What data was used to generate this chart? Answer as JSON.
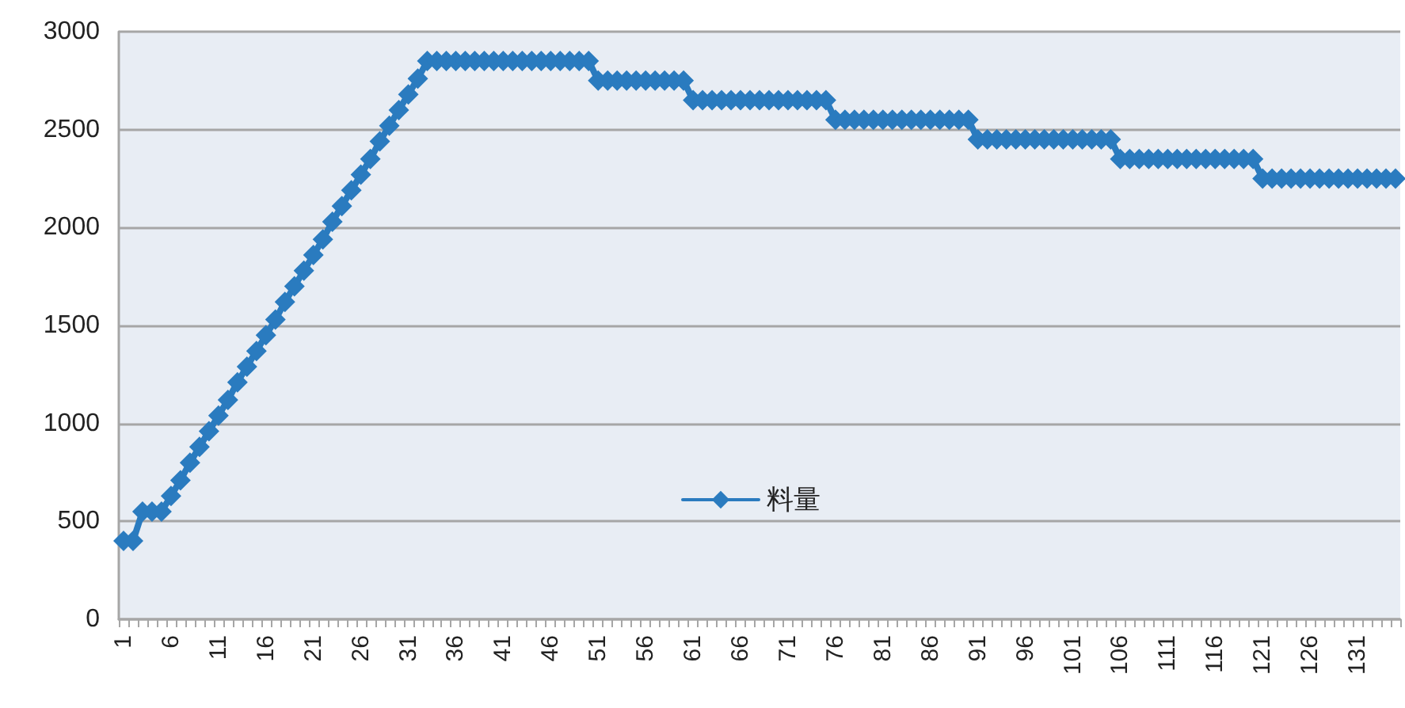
{
  "chart_data": {
    "type": "line",
    "categories": [
      "1",
      null,
      null,
      null,
      null,
      "6",
      null,
      null,
      null,
      null,
      "11",
      null,
      null,
      null,
      null,
      "16",
      null,
      null,
      null,
      null,
      "21",
      null,
      null,
      null,
      null,
      "26",
      null,
      null,
      null,
      null,
      "31",
      null,
      null,
      null,
      null,
      "36",
      null,
      null,
      null,
      null,
      "41",
      null,
      null,
      null,
      null,
      "46",
      null,
      null,
      null,
      null,
      "51",
      null,
      null,
      null,
      null,
      "56",
      null,
      null,
      null,
      null,
      "61",
      null,
      null,
      null,
      null,
      "66",
      null,
      null,
      null,
      null,
      "71",
      null,
      null,
      null,
      null,
      "76",
      null,
      null,
      null,
      null,
      "81",
      null,
      null,
      null,
      null,
      "86",
      null,
      null,
      null,
      null,
      "91",
      null,
      null,
      null,
      null,
      "96",
      null,
      null,
      null,
      null,
      "101",
      null,
      null,
      null,
      null,
      "106",
      null,
      null,
      null,
      null,
      "111",
      null,
      null,
      null,
      null,
      "116",
      null,
      null,
      null,
      null,
      "121",
      null,
      null,
      null,
      null,
      "126",
      null,
      null,
      null,
      null,
      "131",
      null,
      null,
      null,
      null
    ],
    "series": [
      {
        "name": "料量",
        "color": "#2a7bbf",
        "values": [
          400,
          400,
          550,
          550,
          550,
          630,
          710,
          800,
          880,
          960,
          1040,
          1120,
          1210,
          1290,
          1370,
          1450,
          1530,
          1620,
          1700,
          1780,
          1860,
          1940,
          2030,
          2110,
          2190,
          2270,
          2350,
          2440,
          2520,
          2600,
          2680,
          2760,
          2850,
          2850,
          2850,
          2850,
          2850,
          2850,
          2850,
          2850,
          2850,
          2850,
          2850,
          2850,
          2850,
          2850,
          2850,
          2850,
          2850,
          2850,
          2750,
          2750,
          2750,
          2750,
          2750,
          2750,
          2750,
          2750,
          2750,
          2750,
          2650,
          2650,
          2650,
          2650,
          2650,
          2650,
          2650,
          2650,
          2650,
          2650,
          2650,
          2650,
          2650,
          2650,
          2650,
          2550,
          2550,
          2550,
          2550,
          2550,
          2550,
          2550,
          2550,
          2550,
          2550,
          2550,
          2550,
          2550,
          2550,
          2550,
          2450,
          2450,
          2450,
          2450,
          2450,
          2450,
          2450,
          2450,
          2450,
          2450,
          2450,
          2450,
          2450,
          2450,
          2450,
          2350,
          2350,
          2350,
          2350,
          2350,
          2350,
          2350,
          2350,
          2350,
          2350,
          2350,
          2350,
          2350,
          2350,
          2350,
          2250,
          2250,
          2250,
          2250,
          2250,
          2250,
          2250,
          2250,
          2250,
          2250,
          2250,
          2250,
          2250,
          2250,
          2250
        ]
      }
    ],
    "ylim": [
      0,
      3000
    ],
    "yticks": [
      0,
      500,
      1000,
      1500,
      2000,
      2500,
      3000
    ],
    "grid": "y",
    "legend": "center",
    "marker": "diamond",
    "line_style": "solid"
  }
}
